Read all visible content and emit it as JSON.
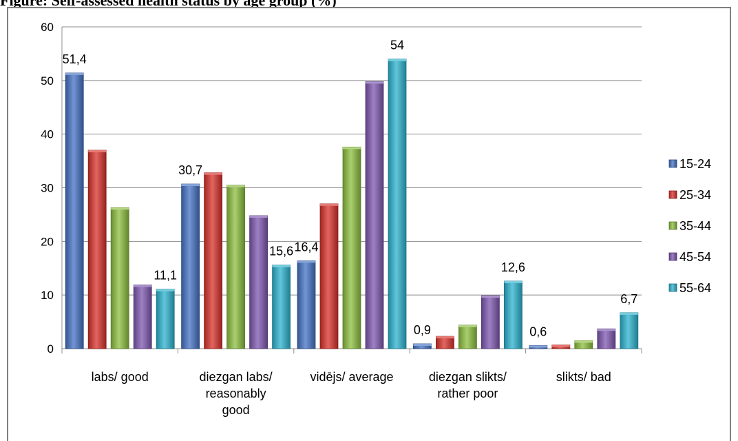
{
  "title": "Figure: Self-assessed health status by age group (%)",
  "chart_data": {
    "type": "bar",
    "categories": [
      [
        "labs/ good"
      ],
      [
        "diezgan labs/",
        "reasonably",
        "good"
      ],
      [
        "vidējs/ average"
      ],
      [
        "diezgan slikts/",
        "rather poor"
      ],
      [
        "slikts/ bad"
      ]
    ],
    "series": [
      {
        "name": "15-24",
        "color": "#4472c4",
        "values": [
          51.4,
          30.7,
          16.4,
          0.9,
          0.6
        ]
      },
      {
        "name": "25-34",
        "color": "#d9312b",
        "values": [
          37.0,
          32.8,
          27.0,
          2.3,
          0.7
        ]
      },
      {
        "name": "35-44",
        "color": "#8cbf3f",
        "values": [
          26.3,
          30.5,
          37.6,
          4.4,
          1.5
        ]
      },
      {
        "name": "45-54",
        "color": "#7e57b0",
        "values": [
          11.9,
          24.8,
          49.8,
          9.9,
          3.7
        ]
      },
      {
        "name": "55-64",
        "color": "#2cb3cf",
        "values": [
          11.1,
          15.6,
          54.0,
          12.6,
          6.7
        ]
      }
    ],
    "data_labels": [
      {
        "category": 0,
        "series": 0,
        "text": "51,4"
      },
      {
        "category": 0,
        "series": 4,
        "text": "11,1"
      },
      {
        "category": 1,
        "series": 0,
        "text": "30,7"
      },
      {
        "category": 1,
        "series": 4,
        "text": "15,6"
      },
      {
        "category": 2,
        "series": 0,
        "text": "16,4"
      },
      {
        "category": 2,
        "series": 4,
        "text": "54"
      },
      {
        "category": 3,
        "series": 0,
        "text": "0,9"
      },
      {
        "category": 3,
        "series": 4,
        "text": "12,6"
      },
      {
        "category": 4,
        "series": 0,
        "text": "0,6"
      },
      {
        "category": 4,
        "series": 4,
        "text": "6,7"
      }
    ],
    "ylim": [
      0,
      60
    ],
    "yticks": [
      0,
      10,
      20,
      30,
      40,
      50,
      60
    ],
    "grid": true,
    "legend": "right"
  }
}
